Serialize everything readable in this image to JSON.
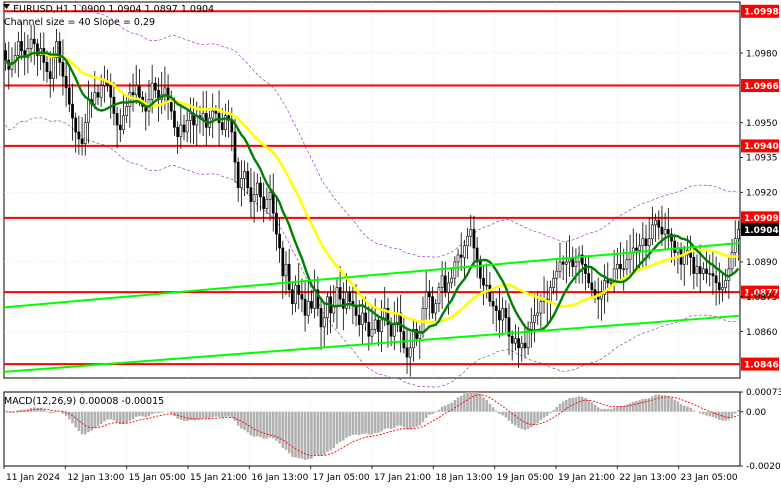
{
  "header": {
    "symbol_line": "EURUSD,H1  1.0900 1.0904 1.0897 1.0904",
    "indicator_line": "Channel size = 40 Slope = 0.29"
  },
  "colors": {
    "level_line": "#ff0000",
    "level_tag_bg": "#ff0000",
    "channel_line": "#00ff00",
    "sma_fast": "#008000",
    "sma_slow": "#ffff00",
    "envelope": "#a040c0",
    "candle": "#000000",
    "grid": "#d8d8d8",
    "macd_hist": "#b0b0b0",
    "macd_signal": "#ff0000",
    "current_price_bg": "#000000"
  },
  "chart_data": [
    {
      "type": "candlestick",
      "symbol": "EURUSD",
      "timeframe": "H1",
      "ylim": [
        1.084,
        1.1002
      ],
      "y_ticks": [
        "1.0980",
        "1.0950",
        "1.0935",
        "1.0920",
        "1.0890",
        "1.0875",
        "1.0860"
      ],
      "x_ticks": [
        "11 Jan 2024",
        "12 Jan 13:00",
        "15 Jan 05:00",
        "15 Jan 21:00",
        "16 Jan 13:00",
        "17 Jan 05:00",
        "17 Jan 21:00",
        "18 Jan 13:00",
        "19 Jan 05:00",
        "19 Jan 21:00",
        "22 Jan 13:00",
        "23 Jan 05:00"
      ],
      "current_price": "1.0904",
      "levels": [
        {
          "label": "1.0998",
          "value": 1.0998
        },
        {
          "label": "1.0966",
          "value": 1.0966
        },
        {
          "label": "1.0940",
          "value": 1.094
        },
        {
          "label": "1.0909",
          "value": 1.0909
        },
        {
          "label": "1.0877",
          "value": 1.0877
        },
        {
          "label": "1.0846",
          "value": 1.0846
        }
      ],
      "trend_channel": {
        "lower_line": [
          [
            0,
            1.08705
          ],
          [
            150,
            1.089
          ],
          [
            300,
            1.09065
          ],
          [
            400,
            1.09185
          ]
        ],
        "upper_line": [
          [
            -44,
            1.08381
          ],
          [
            150,
            1.08578
          ],
          [
            300,
            1.08738
          ],
          [
            400,
            1.08846
          ]
        ]
      },
      "close": [
        1.0977,
        1.0973,
        1.0976,
        1.0979,
        1.0985,
        1.0981,
        1.0978,
        1.0982,
        1.0986,
        1.0984,
        1.0979,
        1.0982,
        1.0976,
        1.0972,
        1.0969,
        1.0978,
        1.0985,
        1.0976,
        1.097,
        1.0965,
        1.0958,
        1.0952,
        1.0946,
        1.0943,
        1.0941,
        1.095,
        1.096,
        1.0958,
        1.0963,
        1.0961,
        1.0966,
        1.0968,
        1.0966,
        1.0961,
        1.0954,
        1.0949,
        1.0947,
        1.0953,
        1.0957,
        1.0963,
        1.0962,
        1.0966,
        1.0961,
        1.0957,
        1.0955,
        1.096,
        1.0967,
        1.0964,
        1.096,
        1.0962,
        1.0965,
        1.0959,
        1.0955,
        1.0948,
        1.0944,
        1.0949,
        1.0946,
        1.0951,
        1.0954,
        1.0949,
        1.0953,
        1.0952,
        1.0954,
        1.0948,
        1.0952,
        1.0955,
        1.0954,
        1.095,
        1.0947,
        1.0953,
        1.0951,
        1.0946,
        1.0933,
        1.0922,
        1.0926,
        1.0929,
        1.0922,
        1.0916,
        1.0919,
        1.0924,
        1.0918,
        1.0913,
        1.0917,
        1.092,
        1.0911,
        1.0902,
        1.0896,
        1.0884,
        1.0889,
        1.0878,
        1.0872,
        1.088,
        1.0876,
        1.0874,
        1.0867,
        1.0873,
        1.087,
        1.0878,
        1.087,
        1.0862,
        1.0866,
        1.0875,
        1.0868,
        1.0871,
        1.0879,
        1.0874,
        1.087,
        1.0877,
        1.0873,
        1.0871,
        1.0867,
        1.0863,
        1.0868,
        1.0864,
        1.0858,
        1.0861,
        1.0865,
        1.086,
        1.0865,
        1.087,
        1.0863,
        1.0858,
        1.0863,
        1.0868,
        1.086,
        1.0853,
        1.0849,
        1.0853,
        1.0861,
        1.0857,
        1.086,
        1.087,
        1.0877,
        1.0875,
        1.0868,
        1.0872,
        1.0879,
        1.0884,
        1.0877,
        1.0881,
        1.0883,
        1.089,
        1.0893,
        1.0892,
        1.0897,
        1.0901,
        1.0904,
        1.0896,
        1.089,
        1.0883,
        1.088,
        1.088,
        1.0873,
        1.0871,
        1.0869,
        1.0865,
        1.087,
        1.0866,
        1.0858,
        1.0855,
        1.0857,
        1.0853,
        1.0855,
        1.0853,
        1.0861,
        1.0864,
        1.0867,
        1.0868,
        1.0873,
        1.0874,
        1.0873,
        1.0879,
        1.0883,
        1.0886,
        1.089,
        1.0889,
        1.089,
        1.0892,
        1.0888,
        1.089,
        1.0893,
        1.0889,
        1.0885,
        1.0881,
        1.0878,
        1.0875,
        1.0874,
        1.0876,
        1.0882,
        1.0881,
        1.0881,
        1.0887,
        1.0889,
        1.0887,
        1.0887,
        1.0891,
        1.0894,
        1.0896,
        1.0895,
        1.0897,
        1.09,
        1.0897,
        1.09,
        1.0906,
        1.0908,
        1.0905,
        1.0902,
        1.0904,
        1.0902,
        1.0899,
        1.0894,
        1.0896,
        1.0889,
        1.0893,
        1.0895,
        1.0892,
        1.0885,
        1.0888,
        1.0885,
        1.0887,
        1.0885,
        1.0885,
        1.0884,
        1.0881,
        1.0878,
        1.0879,
        1.0882,
        1.0887,
        1.0894,
        1.09,
        1.0904
      ]
    },
    {
      "type": "histogram",
      "title": "MACD(12,26,9) 0.00008 -0.00015",
      "ylim": [
        -0.00201,
        0.00073
      ],
      "y_ticks": [
        "0.00073",
        "0.00",
        "-0.00201"
      ]
    }
  ]
}
